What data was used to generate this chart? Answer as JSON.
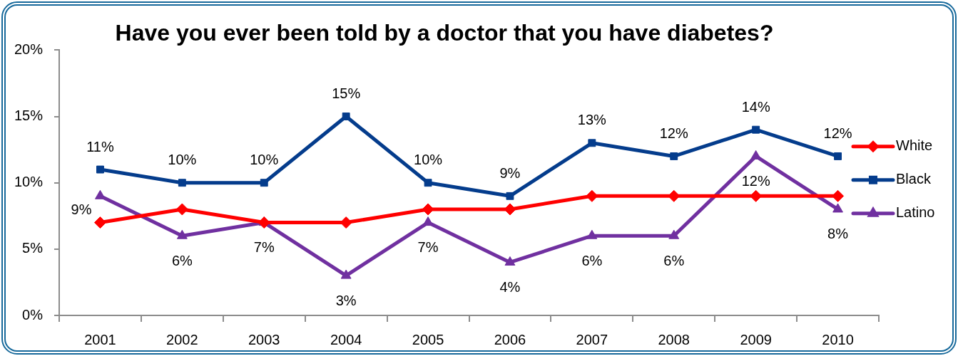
{
  "chart_data": {
    "type": "line",
    "title": "Have you ever been told by a doctor that you have diabetes?",
    "categories": [
      "2001",
      "2002",
      "2003",
      "2004",
      "2005",
      "2006",
      "2007",
      "2008",
      "2009",
      "2010"
    ],
    "series": [
      {
        "name": "White",
        "color": "#ff0000",
        "marker": "diamond",
        "values": [
          7,
          8,
          7,
          7,
          8,
          8,
          9,
          9,
          9,
          9
        ]
      },
      {
        "name": "Black",
        "color": "#043c8c",
        "marker": "square",
        "values": [
          11,
          10,
          10,
          15,
          10,
          9,
          13,
          12,
          14,
          12
        ],
        "value_labels": [
          "11%",
          "10%",
          "10%",
          "15%",
          "10%",
          "9%",
          "13%",
          "12%",
          "14%",
          "12%"
        ]
      },
      {
        "name": "Latino",
        "color": "#7030a0",
        "marker": "triangle",
        "values": [
          9,
          6,
          7,
          3,
          7,
          4,
          6,
          6,
          12,
          8
        ],
        "value_labels": [
          "9%",
          "6%",
          "7%",
          "3%",
          "7%",
          "4%",
          "6%",
          "6%",
          "12%",
          "8%"
        ]
      }
    ],
    "ylim": [
      0,
      20
    ],
    "yticks": [
      {
        "value": 0,
        "label": "0%"
      },
      {
        "value": 5,
        "label": "5%"
      },
      {
        "value": 10,
        "label": "10%"
      },
      {
        "value": 15,
        "label": "15%"
      },
      {
        "value": 20,
        "label": "20%"
      }
    ],
    "grid": false,
    "legend": "right",
    "line_style": "solid"
  }
}
